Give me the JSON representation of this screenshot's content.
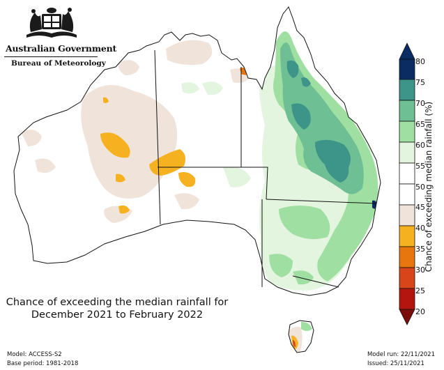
{
  "header": {
    "government": "Australian Government",
    "agency": "Bureau of Meteorology"
  },
  "map": {
    "title_line1": "Chance of exceeding the median rainfall for",
    "title_line2": "December 2021 to February 2022",
    "colors": {
      "c20": "#7a0c0c",
      "c25": "#b3160e",
      "c30": "#d9451a",
      "c35": "#e8760f",
      "c40": "#f5b120",
      "c45": "#efe3da",
      "c50": "#ffffff",
      "c55": "#ffffff",
      "c60": "#e3f4df",
      "c65": "#9fe0a2",
      "c70": "#6ebf93",
      "c75": "#3d9488",
      "c80": "#0a2c63"
    }
  },
  "colorbar": {
    "title": "Chance of exceeding median rainfall (%)",
    "ticks": [
      "80",
      "75",
      "70",
      "65",
      "60",
      "55",
      "50",
      "45",
      "40",
      "35",
      "30",
      "25",
      "20"
    ]
  },
  "footer": {
    "model": "Model: ACCESS-S2",
    "base_period": "Base period: 1981-2018",
    "model_run": "Model run: 22/11/2021",
    "issued": "Issued: 25/11/2021"
  }
}
